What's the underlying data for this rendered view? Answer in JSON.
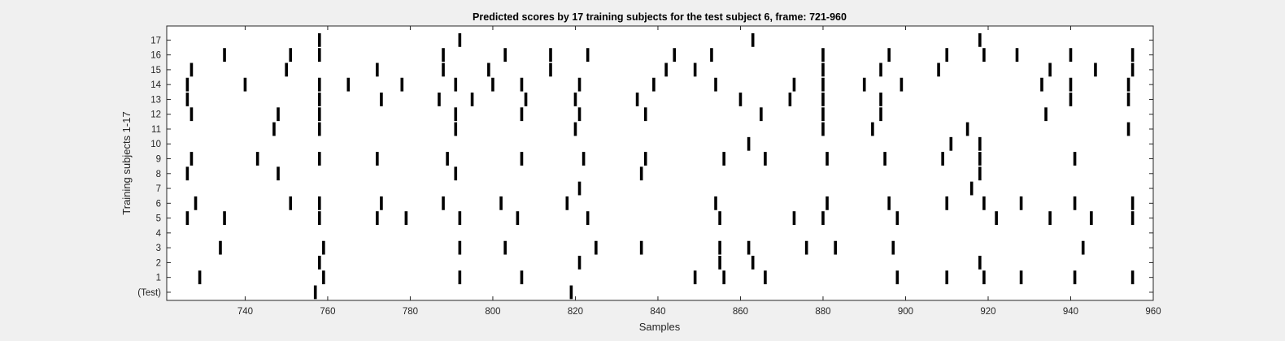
{
  "chart_data": {
    "type": "raster",
    "title": "Predicted scores by 17 training subjects for the test subject 6, frame: 721-960",
    "xlabel": "Samples",
    "ylabel": "Training subjects 1-17",
    "xlim": [
      721,
      960
    ],
    "x_ticks": [
      740,
      760,
      780,
      800,
      820,
      840,
      860,
      880,
      900,
      920,
      940,
      960
    ],
    "y_tick_labels": [
      "(Test)",
      "1",
      "2",
      "3",
      "4",
      "5",
      "6",
      "7",
      "8",
      "9",
      "10",
      "11",
      "12",
      "13",
      "14",
      "15",
      "16",
      "17"
    ],
    "mark_color": "#000000",
    "series": [
      {
        "name": "(Test)",
        "x": [
          757,
          819
        ]
      },
      {
        "name": "1",
        "x": [
          729,
          759,
          792,
          807,
          849,
          856,
          866,
          898,
          910,
          919,
          928,
          941,
          955
        ]
      },
      {
        "name": "2",
        "x": [
          758,
          821,
          855,
          863,
          918
        ]
      },
      {
        "name": "3",
        "x": [
          734,
          759,
          792,
          803,
          825,
          836,
          855,
          862,
          876,
          883,
          897,
          943
        ]
      },
      {
        "name": "4",
        "x": []
      },
      {
        "name": "5",
        "x": [
          726,
          735,
          758,
          772,
          779,
          792,
          806,
          823,
          855,
          873,
          880,
          898,
          922,
          935,
          945,
          955
        ]
      },
      {
        "name": "6",
        "x": [
          728,
          751,
          758,
          773,
          788,
          802,
          818,
          854,
          881,
          896,
          910,
          919,
          928,
          941,
          955
        ]
      },
      {
        "name": "7",
        "x": [
          821,
          916
        ]
      },
      {
        "name": "8",
        "x": [
          726,
          748,
          791,
          836,
          918
        ]
      },
      {
        "name": "9",
        "x": [
          727,
          743,
          758,
          772,
          789,
          807,
          822,
          837,
          856,
          866,
          881,
          895,
          909,
          918,
          941
        ]
      },
      {
        "name": "10",
        "x": [
          862,
          911,
          918
        ]
      },
      {
        "name": "11",
        "x": [
          747,
          758,
          791,
          820,
          880,
          892,
          915,
          954
        ]
      },
      {
        "name": "12",
        "x": [
          727,
          748,
          758,
          791,
          807,
          821,
          837,
          865,
          880,
          894,
          934
        ]
      },
      {
        "name": "13",
        "x": [
          726,
          758,
          773,
          787,
          795,
          808,
          820,
          835,
          860,
          872,
          880,
          894,
          940,
          954
        ]
      },
      {
        "name": "14",
        "x": [
          726,
          740,
          758,
          765,
          778,
          791,
          800,
          807,
          821,
          839,
          854,
          873,
          880,
          890,
          899,
          933,
          940,
          954
        ]
      },
      {
        "name": "15",
        "x": [
          727,
          750,
          772,
          788,
          799,
          814,
          842,
          849,
          880,
          894,
          908,
          935,
          946,
          955
        ]
      },
      {
        "name": "16",
        "x": [
          735,
          751,
          758,
          788,
          803,
          814,
          823,
          844,
          853,
          880,
          896,
          910,
          919,
          927,
          940,
          955
        ]
      },
      {
        "name": "17",
        "x": [
          758,
          792,
          863,
          918
        ]
      }
    ]
  }
}
